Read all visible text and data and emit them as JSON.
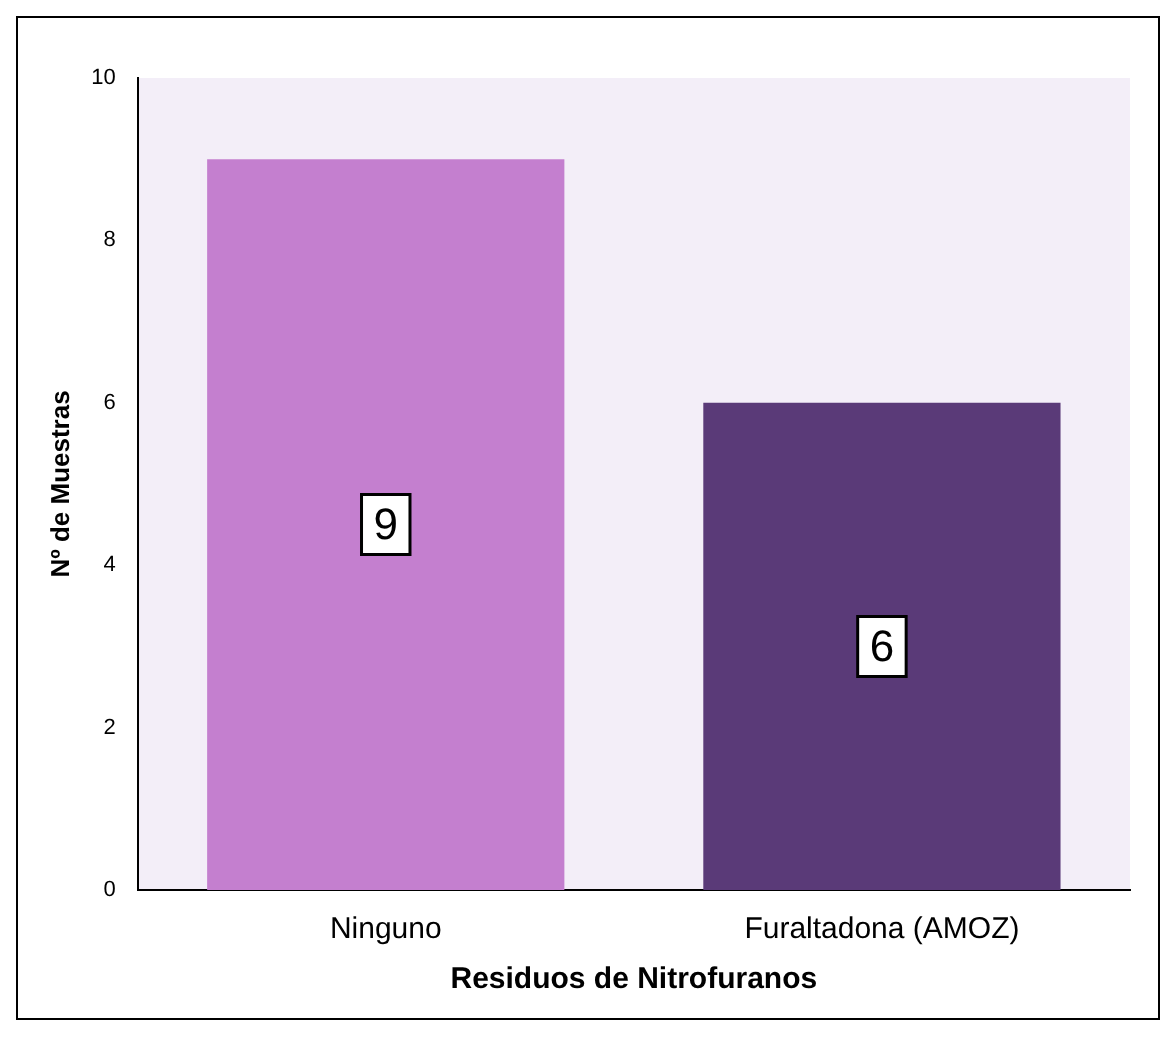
{
  "chart_data": {
    "type": "bar",
    "xlabel": "Residuos de Nitrofuranos",
    "ylabel": "Nº de Muestras",
    "categories": [
      "Ninguno",
      "Furaltadona (AMOZ)"
    ],
    "values": [
      9,
      6
    ],
    "colors": [
      "#c47fcf",
      "#5a3a78"
    ],
    "ylim": [
      0,
      10
    ],
    "yticks": [
      0,
      2,
      4,
      6,
      8,
      10
    ],
    "grid": false,
    "legend": false,
    "data_labels": true
  }
}
